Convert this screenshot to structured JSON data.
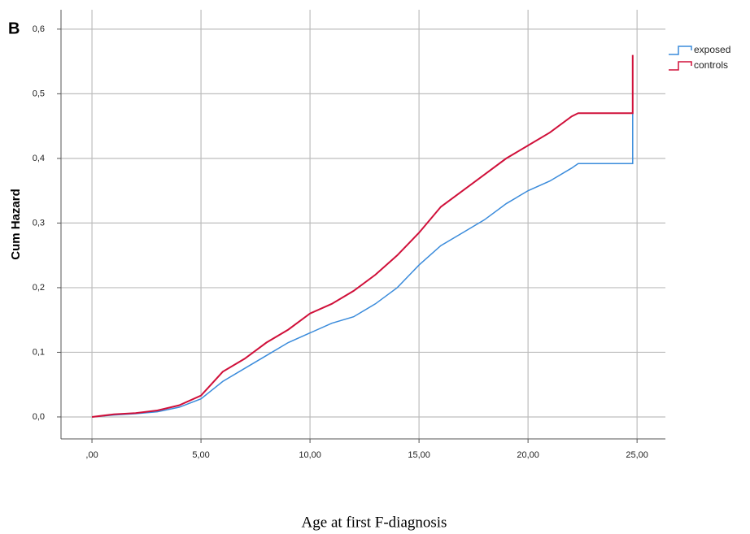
{
  "chart_data": {
    "type": "line",
    "panel_label": "B",
    "ylabel": "Cum Hazard",
    "xlabel": "Age at first F-diagnosis",
    "x": [
      0,
      1,
      2,
      3,
      4,
      5,
      6,
      7,
      8,
      9,
      10,
      11,
      12,
      13,
      14,
      15,
      16,
      17,
      18,
      19,
      20,
      21,
      22,
      22.3,
      24.8,
      24.8
    ],
    "series": [
      {
        "name": "exposed",
        "color": "#3a8bdb",
        "values": [
          0,
          0.003,
          0.005,
          0.008,
          0.015,
          0.028,
          0.055,
          0.075,
          0.095,
          0.115,
          0.13,
          0.145,
          0.155,
          0.175,
          0.2,
          0.235,
          0.265,
          0.285,
          0.305,
          0.33,
          0.35,
          0.365,
          0.385,
          0.392,
          0.392,
          0.47
        ]
      },
      {
        "name": "controls",
        "color": "#d0103a",
        "values": [
          0,
          0.004,
          0.006,
          0.01,
          0.018,
          0.033,
          0.07,
          0.09,
          0.115,
          0.135,
          0.16,
          0.175,
          0.195,
          0.22,
          0.25,
          0.285,
          0.325,
          0.35,
          0.375,
          0.4,
          0.42,
          0.44,
          0.465,
          0.47,
          0.47,
          0.56
        ]
      }
    ],
    "xlim": [
      -1.42,
      26.3
    ],
    "ylim": [
      -0.034,
      0.63
    ],
    "xticks": [
      {
        "value": 0,
        "label": ",00"
      },
      {
        "value": 5,
        "label": "5,00"
      },
      {
        "value": 10,
        "label": "10,00"
      },
      {
        "value": 15,
        "label": "15,00"
      },
      {
        "value": 20,
        "label": "20,00"
      },
      {
        "value": 25,
        "label": "25,00"
      }
    ],
    "yticks": [
      {
        "value": 0,
        "label": "0,0"
      },
      {
        "value": 0.1,
        "label": "0,1"
      },
      {
        "value": 0.2,
        "label": "0,2"
      },
      {
        "value": 0.3,
        "label": "0,3"
      },
      {
        "value": 0.4,
        "label": "0,4"
      },
      {
        "value": 0.5,
        "label": "0,5"
      },
      {
        "value": 0.6,
        "label": "0,6"
      }
    ],
    "grid": true,
    "legend": "top-right"
  }
}
